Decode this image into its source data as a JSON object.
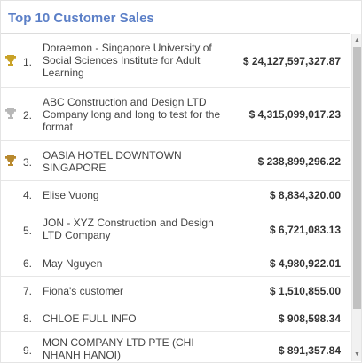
{
  "widget": {
    "title": "Top 10 Customer Sales"
  },
  "rows": [
    {
      "rank": "1.",
      "name": "Doraemon - Singapore University of Social Sciences Institute for Adult Learning",
      "amount": "$ 24,127,597,327.87",
      "trophy": "gold-trophy-icon"
    },
    {
      "rank": "2.",
      "name": "ABC Construction and Design LTD Company long and long to test for the format",
      "amount": "$ 4,315,099,017.23",
      "trophy": "silver-trophy-icon"
    },
    {
      "rank": "3.",
      "name": "OASIA HOTEL DOWNTOWN SINGAPORE",
      "amount": "$ 238,899,296.22",
      "trophy": "bronze-trophy-icon"
    },
    {
      "rank": "4.",
      "name": "Elise Vuong",
      "amount": "$ 8,834,320.00"
    },
    {
      "rank": "5.",
      "name": "JON - XYZ Construction and Design LTD Company",
      "amount": "$ 6,721,083.13"
    },
    {
      "rank": "6.",
      "name": "May Nguyen",
      "amount": "$ 4,980,922.01"
    },
    {
      "rank": "7.",
      "name": "Fiona's customer",
      "amount": "$ 1,510,855.00"
    },
    {
      "rank": "8.",
      "name": "CHLOE FULL INFO",
      "amount": "$ 908,598.34"
    },
    {
      "rank": "9.",
      "name": "MON COMPANY LTD PTE (CHI NHANH HANOI)",
      "amount": "$ 891,357.84"
    }
  ],
  "colors": {
    "title": "#5b7fc7",
    "gold": "#c9a227",
    "silver": "#b8b8b8",
    "bronze": "#b8892e"
  }
}
